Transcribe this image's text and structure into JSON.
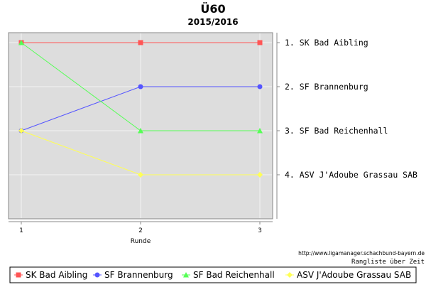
{
  "chart_data": {
    "type": "line",
    "title": "Ü60",
    "subtitle": "2015/2016",
    "xlabel": "Runde",
    "ylabel": "",
    "x": [
      1,
      2,
      3
    ],
    "ylim": [
      1,
      4
    ],
    "y_inverted": true,
    "grid": true,
    "legend_position": "bottom",
    "series": [
      {
        "name": "SK Bad Aibling",
        "values": [
          1,
          1,
          1
        ],
        "color": "#ff5555",
        "marker": "square"
      },
      {
        "name": "SF Brannenburg",
        "values": [
          3,
          2,
          2
        ],
        "color": "#5555ff",
        "marker": "circle"
      },
      {
        "name": "SF Bad Reichenhall",
        "values": [
          1,
          3,
          3
        ],
        "color": "#55ff55",
        "marker": "triangle"
      },
      {
        "name": "ASV J'Adoube Grassau SAB",
        "values": [
          3,
          4,
          4
        ],
        "color": "#ffff55",
        "marker": "diamond"
      }
    ],
    "right_axis_labels": [
      "1. SK Bad Aibling",
      "2. SF Brannenburg",
      "3. SF Bad Reichenhall",
      "4. ASV J'Adoube Grassau SAB"
    ],
    "annotations": {
      "source_url": "http://www.ligamanager.schachbund-bayern.de",
      "caption": "Rangliste über Zeit"
    }
  }
}
